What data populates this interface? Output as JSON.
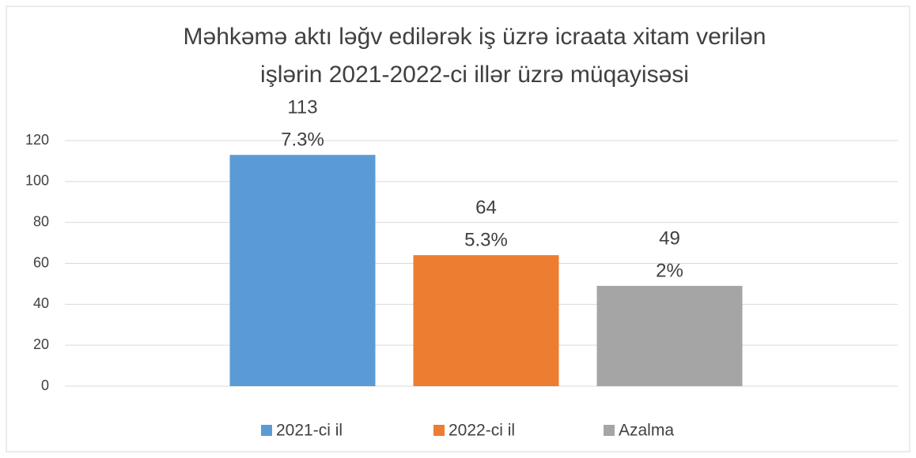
{
  "chart_data": {
    "type": "bar",
    "title": [
      "Məhkəmə aktı ləğv edilərək iş üzrə icraata xitam verilən",
      "işlərin 2021-2022-ci illər üzrə müqayisəsi"
    ],
    "categories": [
      null
    ],
    "series": [
      {
        "name": "2021-ci il",
        "color": "#5b9bd5",
        "values": [
          113
        ],
        "shares": [
          "7.3%"
        ]
      },
      {
        "name": "2022-ci il",
        "color": "#ed7d31",
        "values": [
          64
        ],
        "shares": [
          "5.3%"
        ]
      },
      {
        "name": "Azalma",
        "color": "#a5a5a5",
        "values": [
          49
        ],
        "shares": [
          "2%"
        ]
      }
    ],
    "ylim": [
      0,
      120
    ],
    "yticks": [
      0,
      20,
      40,
      60,
      80,
      100,
      120
    ],
    "grid": true,
    "legend": "bottom"
  }
}
